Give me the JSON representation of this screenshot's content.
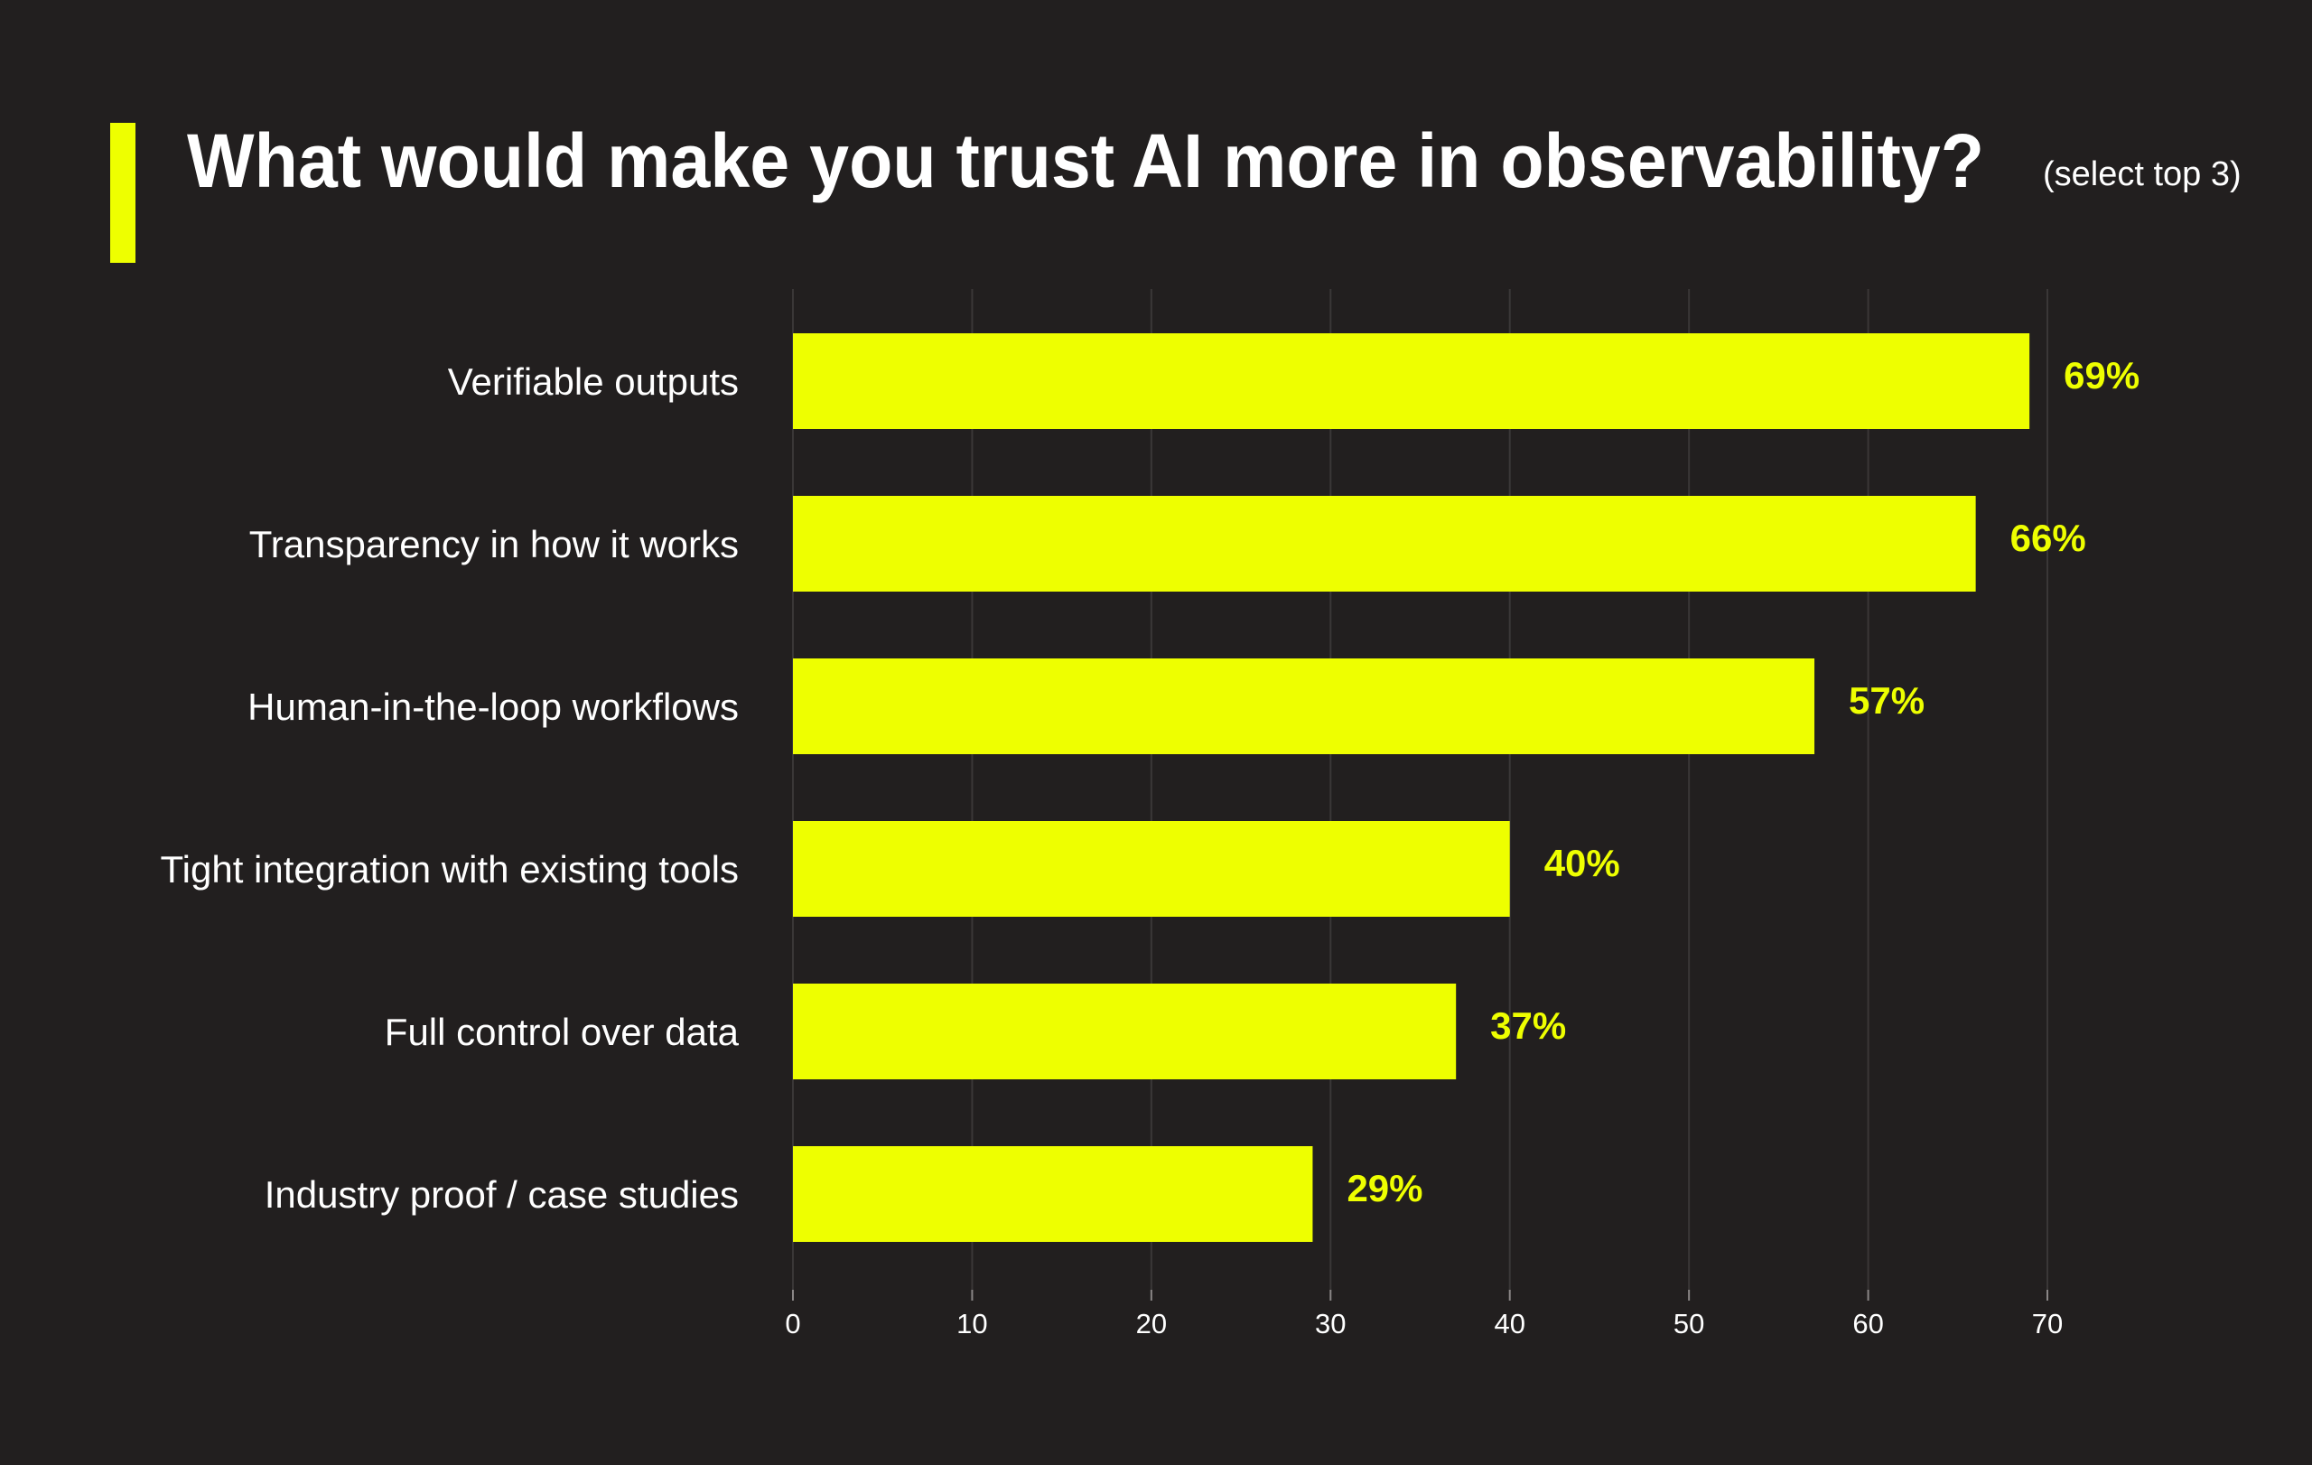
{
  "colors": {
    "background": "#221f1f",
    "accent": "#eeff00",
    "grid": "#3a3737",
    "text": "#ffffff"
  },
  "chart_data": {
    "type": "bar",
    "orientation": "horizontal",
    "title": "What would make you trust AI more in observability?",
    "subtitle": "(select top 3)",
    "categories": [
      "Verifiable outputs",
      "Transparency in how it works",
      "Human-in-the-loop workflows",
      "Tight integration with existing tools",
      "Full control over data",
      "Industry proof / case studies"
    ],
    "values": [
      69,
      66,
      57,
      40,
      37,
      29
    ],
    "data_labels": [
      "69%",
      "66%",
      "57%",
      "40%",
      "37%",
      "29%"
    ],
    "xlim": [
      0,
      70
    ],
    "xticks": [
      "0",
      "10",
      "20",
      "30",
      "40",
      "50",
      "60",
      "70"
    ],
    "xlabel": "",
    "ylabel": "",
    "grid": "vertical"
  }
}
